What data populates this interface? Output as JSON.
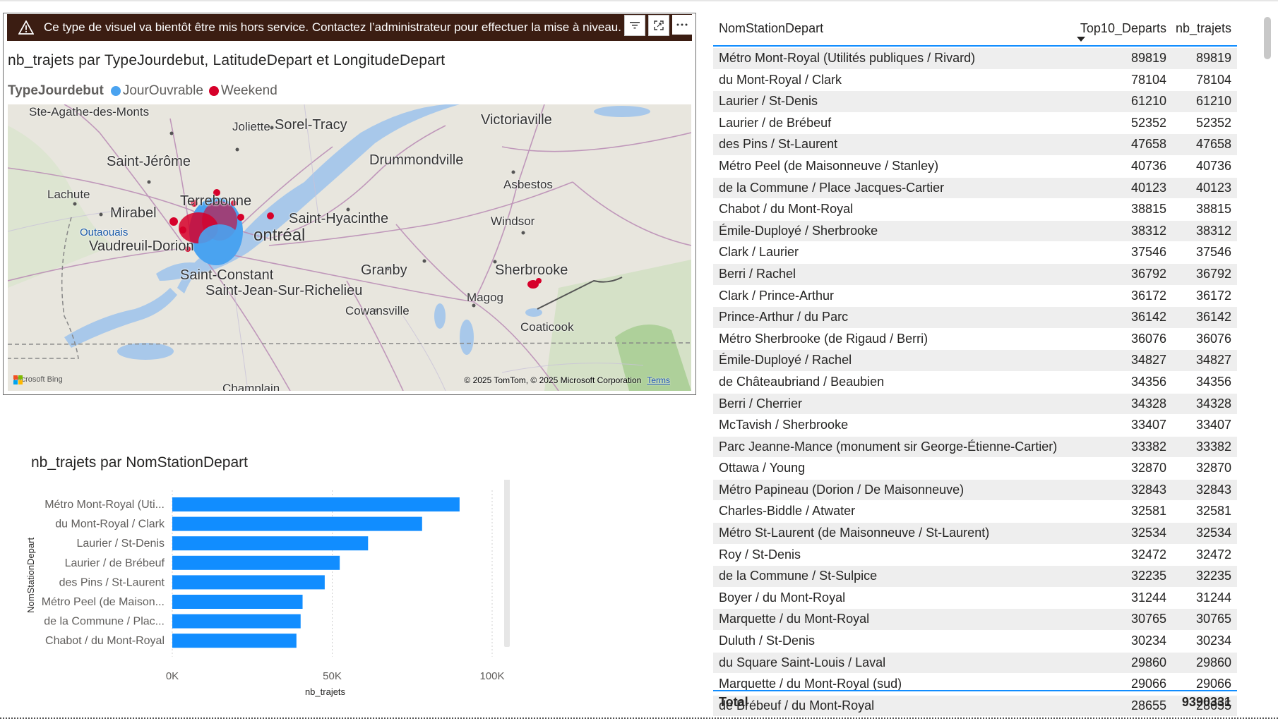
{
  "warning": {
    "text": "Ce type de visuel va bientôt être mis hors service. Contactez l’administrateur pour effectuer la mise à niveau."
  },
  "map_visual": {
    "title": "nb_trajets par TypeJourdebut, LatitudeDepart et LongitudeDepart",
    "legend": {
      "title": "TypeJourdebut",
      "items": [
        {
          "label": "JourOuvrable",
          "color": "#4aa3f0"
        },
        {
          "label": "Weekend",
          "color": "#d6002a"
        }
      ]
    },
    "places": [
      "Ste-Agathe-des-Monts",
      "Joliette",
      "Sorel-Tracy",
      "Victoriaville",
      "Saint-Jérôme",
      "Drummondville",
      "Asbestos",
      "Lachute",
      "Terrebonne",
      "Mirabel",
      "Saint-Hyacinthe",
      "Windsor",
      "Outaouais",
      "ontréal",
      "Vaudreuil-Dorion",
      "Saint-Constant",
      "Granby",
      "Sherbrooke",
      "Saint-Jean-Sur-Richelieu",
      "Magog",
      "Cowansville",
      "Coaticook",
      "Champlain"
    ],
    "bing_label": "Microsoft Bing",
    "copyright": "© 2025 TomTom, © 2025 Microsoft Corporation",
    "terms": "Terms",
    "icons": [
      "warning-icon",
      "filter-icon",
      "focus-mode-icon",
      "more-options-icon"
    ]
  },
  "bar_visual": {
    "title": "nb_trajets par NomStationDepart"
  },
  "chart_data": {
    "type": "bar",
    "orientation": "horizontal",
    "title": "nb_trajets par NomStationDepart",
    "xlabel": "nb_trajets",
    "ylabel": "NomStationDepart",
    "categories": [
      "Métro Mont-Royal (Uti...",
      "du Mont-Royal / Clark",
      "Laurier / St-Denis",
      "Laurier / de Brébeuf",
      "des Pins / St-Laurent",
      "Métro Peel (de Maison...",
      "de la Commune / Plac...",
      "Chabot / du Mont-Royal"
    ],
    "values": [
      89819,
      78104,
      61210,
      52352,
      47658,
      40736,
      40123,
      38815
    ],
    "xlim": [
      0,
      100000
    ],
    "xticks": [
      "0K",
      "50K",
      "100K"
    ],
    "grid": true,
    "color": "#118dff"
  },
  "table": {
    "headers": [
      "NomStationDepart",
      "Top10_Departs",
      "nb_trajets"
    ],
    "rows": [
      [
        "Métro Mont-Royal (Utilités publiques / Rivard)",
        "89819",
        "89819"
      ],
      [
        "du Mont-Royal / Clark",
        "78104",
        "78104"
      ],
      [
        "Laurier / St-Denis",
        "61210",
        "61210"
      ],
      [
        "Laurier / de Brébeuf",
        "52352",
        "52352"
      ],
      [
        "des Pins / St-Laurent",
        "47658",
        "47658"
      ],
      [
        "Métro Peel (de Maisonneuve / Stanley)",
        "40736",
        "40736"
      ],
      [
        "de la Commune / Place Jacques-Cartier",
        "40123",
        "40123"
      ],
      [
        "Chabot / du Mont-Royal",
        "38815",
        "38815"
      ],
      [
        "Émile-Duployé / Sherbrooke",
        "38312",
        "38312"
      ],
      [
        "Clark / Laurier",
        "37546",
        "37546"
      ],
      [
        "Berri / Rachel",
        "36792",
        "36792"
      ],
      [
        "Clark / Prince-Arthur",
        "36172",
        "36172"
      ],
      [
        "Prince-Arthur / du Parc",
        "36142",
        "36142"
      ],
      [
        "Métro Sherbrooke (de Rigaud / Berri)",
        "36076",
        "36076"
      ],
      [
        "Émile-Duployé / Rachel",
        "34827",
        "34827"
      ],
      [
        "de Châteaubriand / Beaubien",
        "34356",
        "34356"
      ],
      [
        "Berri / Cherrier",
        "34328",
        "34328"
      ],
      [
        "McTavish / Sherbrooke",
        "33407",
        "33407"
      ],
      [
        "Parc Jeanne-Mance (monument sir George-Étienne-Cartier)",
        "33382",
        "33382"
      ],
      [
        "Ottawa / Young",
        "32870",
        "32870"
      ],
      [
        "Métro Papineau (Dorion / De Maisonneuve)",
        "32843",
        "32843"
      ],
      [
        "Charles-Biddle / Atwater",
        "32581",
        "32581"
      ],
      [
        "Métro St-Laurent (de Maisonneuve / St-Laurent)",
        "32534",
        "32534"
      ],
      [
        "Roy / St-Denis",
        "32472",
        "32472"
      ],
      [
        "de la Commune / St-Sulpice",
        "32235",
        "32235"
      ],
      [
        "Boyer / du Mont-Royal",
        "31244",
        "31244"
      ],
      [
        "Marquette / du Mont-Royal",
        "30765",
        "30765"
      ],
      [
        "Duluth / St-Denis",
        "30234",
        "30234"
      ],
      [
        "du Square Saint-Louis / Laval",
        "29860",
        "29860"
      ],
      [
        "Marquette / du Mont-Royal (sud)",
        "29066",
        "29066"
      ],
      [
        "de Brébeuf / du Mont-Royal",
        "28655",
        "28655"
      ]
    ],
    "total_label": "Total",
    "total_value": "9390331"
  }
}
